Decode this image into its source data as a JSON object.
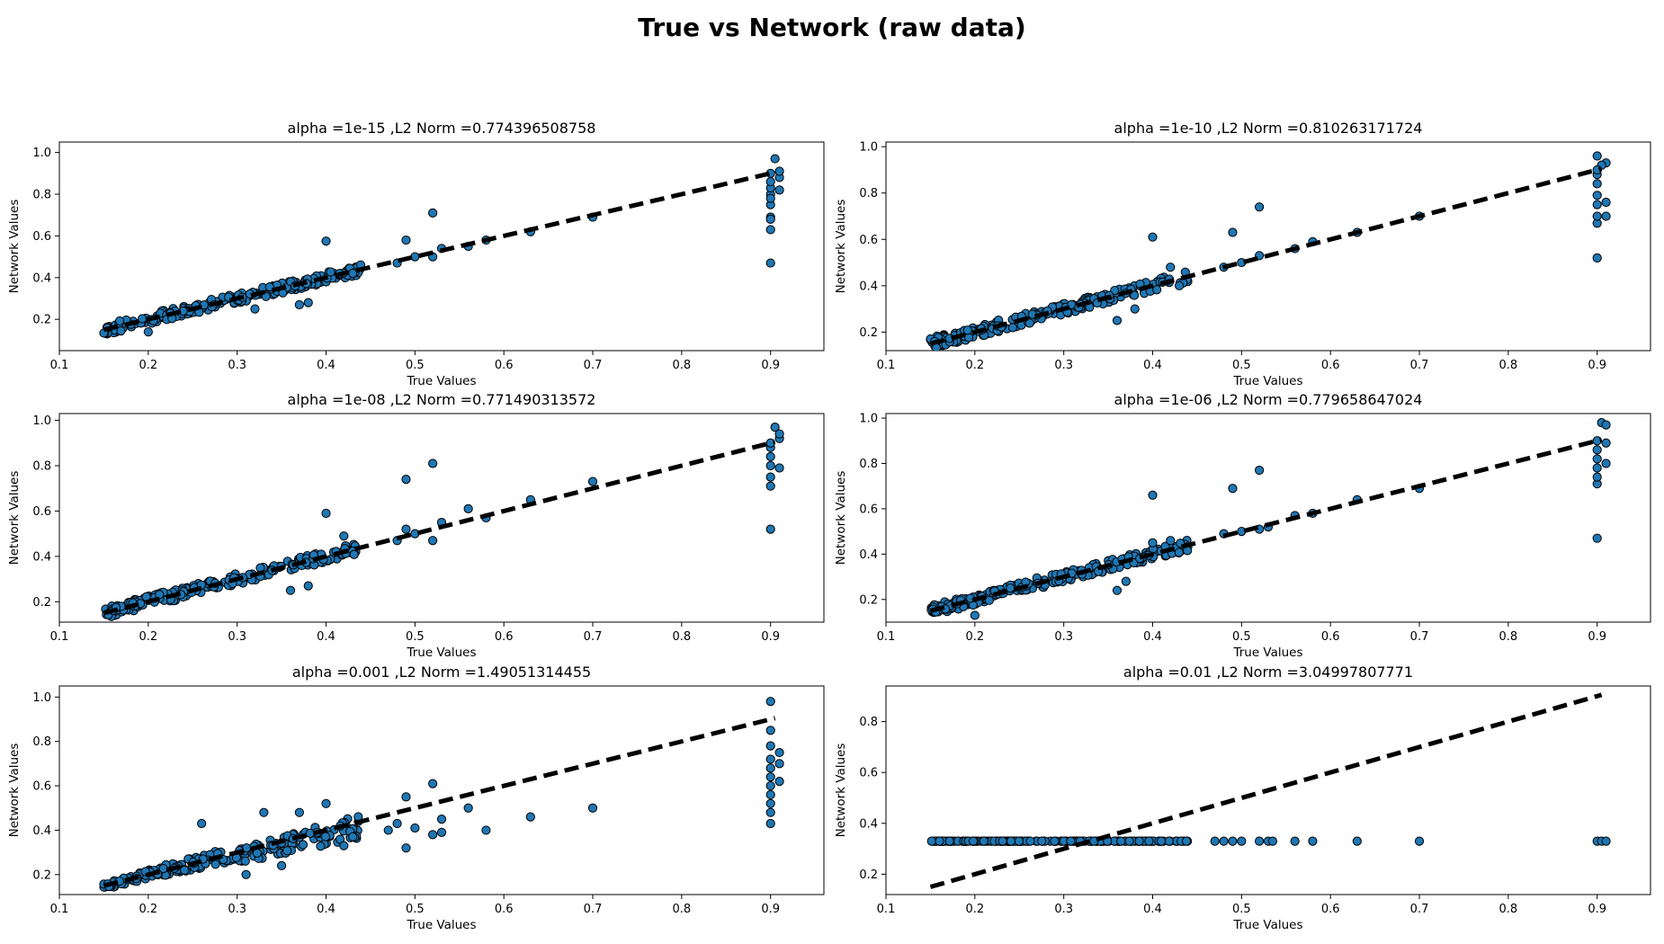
{
  "figure": {
    "title": "True vs Network (raw data)"
  },
  "colors": {
    "point_fill": "#1f77b4",
    "point_edge": "#000000",
    "ideal_line": "#000000",
    "axes": "#000000",
    "background": "#ffffff"
  },
  "chart_data": [
    {
      "type": "scatter",
      "title": "alpha =1e-15 ,L2 Norm =0.774396508758",
      "xlabel": "True Values",
      "ylabel": "Network Values",
      "xlim": [
        0.1,
        0.96
      ],
      "ylim": [
        0.05,
        1.05
      ],
      "xticks": [
        0.1,
        0.2,
        0.3,
        0.4,
        0.5,
        0.6,
        0.7,
        0.8,
        0.9
      ],
      "yticks": [
        0.2,
        0.4,
        0.6,
        0.8,
        1.0
      ],
      "grid": false,
      "series": [
        {
          "kind": "points",
          "model": "tight",
          "seed": 11,
          "noise": 0.025,
          "outliers": [
            [
              0.4,
              0.575
            ],
            [
              0.49,
              0.58
            ],
            [
              0.52,
              0.71
            ],
            [
              0.2,
              0.14
            ],
            [
              0.32,
              0.25
            ],
            [
              0.37,
              0.27
            ],
            [
              0.38,
              0.28
            ],
            [
              0.43,
              0.42
            ],
            [
              0.48,
              0.47
            ],
            [
              0.5,
              0.5
            ],
            [
              0.52,
              0.5
            ],
            [
              0.53,
              0.54
            ],
            [
              0.56,
              0.55
            ],
            [
              0.58,
              0.58
            ],
            [
              0.63,
              0.62
            ],
            [
              0.7,
              0.69
            ],
            [
              0.9,
              0.47
            ],
            [
              0.9,
              0.63
            ],
            [
              0.9,
              0.69
            ],
            [
              0.9,
              0.68
            ],
            [
              0.9,
              0.75
            ],
            [
              0.9,
              0.8
            ],
            [
              0.9,
              0.83
            ],
            [
              0.9,
              0.86
            ],
            [
              0.91,
              0.88
            ],
            [
              0.91,
              0.91
            ],
            [
              0.9,
              0.9
            ],
            [
              0.905,
              0.97
            ],
            [
              0.9,
              0.78
            ],
            [
              0.91,
              0.82
            ]
          ]
        },
        {
          "kind": "ideal",
          "x": [
            0.15,
            0.905
          ],
          "y": [
            0.15,
            0.905
          ]
        }
      ]
    },
    {
      "type": "scatter",
      "title": "alpha =1e-10 ,L2 Norm =0.810263171724",
      "xlabel": "True Values",
      "ylabel": "Network Values",
      "xlim": [
        0.1,
        0.96
      ],
      "ylim": [
        0.12,
        1.02
      ],
      "xticks": [
        0.1,
        0.2,
        0.3,
        0.4,
        0.5,
        0.6,
        0.7,
        0.8,
        0.9
      ],
      "yticks": [
        0.2,
        0.4,
        0.6,
        0.8,
        1.0
      ],
      "grid": false,
      "series": [
        {
          "kind": "points",
          "model": "tight",
          "seed": 23,
          "noise": 0.025,
          "outliers": [
            [
              0.4,
              0.61
            ],
            [
              0.49,
              0.63
            ],
            [
              0.52,
              0.74
            ],
            [
              0.36,
              0.25
            ],
            [
              0.38,
              0.3
            ],
            [
              0.42,
              0.48
            ],
            [
              0.43,
              0.4
            ],
            [
              0.48,
              0.48
            ],
            [
              0.5,
              0.5
            ],
            [
              0.52,
              0.53
            ],
            [
              0.56,
              0.56
            ],
            [
              0.58,
              0.59
            ],
            [
              0.63,
              0.63
            ],
            [
              0.7,
              0.7
            ],
            [
              0.9,
              0.52
            ],
            [
              0.9,
              0.67
            ],
            [
              0.9,
              0.7
            ],
            [
              0.9,
              0.75
            ],
            [
              0.9,
              0.79
            ],
            [
              0.9,
              0.84
            ],
            [
              0.9,
              0.88
            ],
            [
              0.91,
              0.93
            ],
            [
              0.9,
              0.96
            ],
            [
              0.905,
              0.92
            ],
            [
              0.91,
              0.7
            ],
            [
              0.9,
              0.9
            ],
            [
              0.91,
              0.76
            ]
          ]
        },
        {
          "kind": "ideal",
          "x": [
            0.15,
            0.905
          ],
          "y": [
            0.15,
            0.905
          ]
        }
      ]
    },
    {
      "type": "scatter",
      "title": "alpha =1e-08 ,L2 Norm =0.771490313572",
      "xlabel": "True Values",
      "ylabel": "Network Values",
      "xlim": [
        0.1,
        0.96
      ],
      "ylim": [
        0.11,
        1.03
      ],
      "xticks": [
        0.1,
        0.2,
        0.3,
        0.4,
        0.5,
        0.6,
        0.7,
        0.8,
        0.9
      ],
      "yticks": [
        0.2,
        0.4,
        0.6,
        0.8,
        1.0
      ],
      "grid": false,
      "series": [
        {
          "kind": "points",
          "model": "tight",
          "seed": 37,
          "noise": 0.025,
          "outliers": [
            [
              0.4,
              0.59
            ],
            [
              0.49,
              0.74
            ],
            [
              0.52,
              0.81
            ],
            [
              0.36,
              0.25
            ],
            [
              0.38,
              0.27
            ],
            [
              0.42,
              0.49
            ],
            [
              0.48,
              0.47
            ],
            [
              0.49,
              0.52
            ],
            [
              0.5,
              0.5
            ],
            [
              0.52,
              0.47
            ],
            [
              0.53,
              0.55
            ],
            [
              0.56,
              0.61
            ],
            [
              0.58,
              0.57
            ],
            [
              0.63,
              0.65
            ],
            [
              0.7,
              0.73
            ],
            [
              0.9,
              0.52
            ],
            [
              0.9,
              0.71
            ],
            [
              0.9,
              0.75
            ],
            [
              0.9,
              0.8
            ],
            [
              0.9,
              0.84
            ],
            [
              0.9,
              0.88
            ],
            [
              0.91,
              0.92
            ],
            [
              0.905,
              0.97
            ],
            [
              0.9,
              0.9
            ],
            [
              0.91,
              0.79
            ],
            [
              0.91,
              0.94
            ]
          ]
        },
        {
          "kind": "ideal",
          "x": [
            0.15,
            0.905
          ],
          "y": [
            0.15,
            0.905
          ]
        }
      ]
    },
    {
      "type": "scatter",
      "title": "alpha =1e-06 ,L2 Norm =0.779658647024",
      "xlabel": "True Values",
      "ylabel": "Network Values",
      "xlim": [
        0.1,
        0.96
      ],
      "ylim": [
        0.1,
        1.02
      ],
      "xticks": [
        0.1,
        0.2,
        0.3,
        0.4,
        0.5,
        0.6,
        0.7,
        0.8,
        0.9
      ],
      "yticks": [
        0.2,
        0.4,
        0.6,
        0.8,
        1.0
      ],
      "grid": false,
      "series": [
        {
          "kind": "points",
          "model": "tight",
          "seed": 53,
          "noise": 0.025,
          "outliers": [
            [
              0.4,
              0.66
            ],
            [
              0.49,
              0.69
            ],
            [
              0.52,
              0.77
            ],
            [
              0.2,
              0.13
            ],
            [
              0.36,
              0.24
            ],
            [
              0.37,
              0.28
            ],
            [
              0.4,
              0.45
            ],
            [
              0.42,
              0.46
            ],
            [
              0.48,
              0.49
            ],
            [
              0.5,
              0.5
            ],
            [
              0.52,
              0.51
            ],
            [
              0.53,
              0.52
            ],
            [
              0.56,
              0.57
            ],
            [
              0.58,
              0.58
            ],
            [
              0.63,
              0.64
            ],
            [
              0.7,
              0.69
            ],
            [
              0.9,
              0.47
            ],
            [
              0.9,
              0.71
            ],
            [
              0.9,
              0.74
            ],
            [
              0.9,
              0.78
            ],
            [
              0.9,
              0.82
            ],
            [
              0.9,
              0.86
            ],
            [
              0.91,
              0.89
            ],
            [
              0.905,
              0.98
            ],
            [
              0.91,
              0.97
            ],
            [
              0.9,
              0.9
            ],
            [
              0.91,
              0.8
            ]
          ]
        },
        {
          "kind": "ideal",
          "x": [
            0.15,
            0.905
          ],
          "y": [
            0.15,
            0.905
          ]
        }
      ]
    },
    {
      "type": "scatter",
      "title": "alpha =0.001 ,L2 Norm =1.49051314455",
      "xlabel": "True Values",
      "ylabel": "Network Values",
      "xlim": [
        0.1,
        0.96
      ],
      "ylim": [
        0.11,
        1.05
      ],
      "xticks": [
        0.1,
        0.2,
        0.3,
        0.4,
        0.5,
        0.6,
        0.7,
        0.8,
        0.9
      ],
      "yticks": [
        0.2,
        0.4,
        0.6,
        0.8,
        1.0
      ],
      "grid": false,
      "series": [
        {
          "kind": "points",
          "model": "loose",
          "seed": 71,
          "noise": 0.04,
          "outliers": [
            [
              0.26,
              0.43
            ],
            [
              0.33,
              0.48
            ],
            [
              0.37,
              0.48
            ],
            [
              0.4,
              0.52
            ],
            [
              0.49,
              0.55
            ],
            [
              0.52,
              0.61
            ],
            [
              0.56,
              0.5
            ],
            [
              0.63,
              0.46
            ],
            [
              0.7,
              0.5
            ],
            [
              0.42,
              0.33
            ],
            [
              0.43,
              0.37
            ],
            [
              0.47,
              0.4
            ],
            [
              0.48,
              0.43
            ],
            [
              0.49,
              0.32
            ],
            [
              0.5,
              0.41
            ],
            [
              0.52,
              0.38
            ],
            [
              0.53,
              0.45
            ],
            [
              0.53,
              0.39
            ],
            [
              0.58,
              0.4
            ],
            [
              0.31,
              0.2
            ],
            [
              0.35,
              0.24
            ],
            [
              0.9,
              0.43
            ],
            [
              0.9,
              0.48
            ],
            [
              0.9,
              0.52
            ],
            [
              0.9,
              0.56
            ],
            [
              0.9,
              0.6
            ],
            [
              0.9,
              0.64
            ],
            [
              0.9,
              0.68
            ],
            [
              0.9,
              0.72
            ],
            [
              0.91,
              0.75
            ],
            [
              0.9,
              0.78
            ],
            [
              0.9,
              0.85
            ],
            [
              0.9,
              0.98
            ],
            [
              0.91,
              0.7
            ],
            [
              0.91,
              0.62
            ]
          ]
        },
        {
          "kind": "ideal",
          "x": [
            0.15,
            0.905
          ],
          "y": [
            0.15,
            0.905
          ]
        }
      ]
    },
    {
      "type": "scatter",
      "title": "alpha =0.01 ,L2 Norm =3.04997807771",
      "xlabel": "True Values",
      "ylabel": "Network Values",
      "xlim": [
        0.1,
        0.96
      ],
      "ylim": [
        0.12,
        0.94
      ],
      "xticks": [
        0.1,
        0.2,
        0.3,
        0.4,
        0.5,
        0.6,
        0.7,
        0.8,
        0.9
      ],
      "yticks": [
        0.2,
        0.4,
        0.6,
        0.8
      ],
      "grid": false,
      "series": [
        {
          "kind": "points",
          "model": "flat",
          "seed": 89,
          "flat_y": 0.33,
          "outliers": [
            [
              0.47,
              0.33
            ],
            [
              0.48,
              0.33
            ],
            [
              0.49,
              0.33
            ],
            [
              0.5,
              0.33
            ],
            [
              0.52,
              0.33
            ],
            [
              0.53,
              0.33
            ],
            [
              0.535,
              0.33
            ],
            [
              0.56,
              0.33
            ],
            [
              0.58,
              0.33
            ],
            [
              0.63,
              0.33
            ],
            [
              0.7,
              0.33
            ],
            [
              0.9,
              0.33
            ],
            [
              0.905,
              0.33
            ],
            [
              0.91,
              0.33
            ]
          ]
        },
        {
          "kind": "ideal",
          "x": [
            0.15,
            0.905
          ],
          "y": [
            0.15,
            0.905
          ]
        }
      ]
    }
  ]
}
